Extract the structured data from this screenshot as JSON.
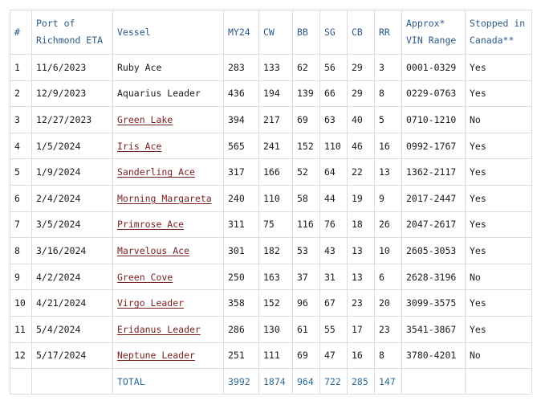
{
  "headers": {
    "num": "#",
    "eta": "Port of Richmond ETA",
    "vessel": "Vessel",
    "my24": "MY24",
    "cw": "CW",
    "bb": "BB",
    "sg": "SG",
    "cb": "CB",
    "rr": "RR",
    "vin": "Approx* VIN Range",
    "stopped": "Stopped in Canada**"
  },
  "rows": [
    {
      "num": "1",
      "eta": "11/6/2023",
      "vessel": "Ruby Ace",
      "link": false,
      "my24": "283",
      "cw": "133",
      "bb": "62",
      "sg": "56",
      "cb": "29",
      "rr": "3",
      "vin": "0001-0329",
      "stopped": "Yes"
    },
    {
      "num": "2",
      "eta": "12/9/2023",
      "vessel": "Aquarius Leader",
      "link": false,
      "my24": "436",
      "cw": "194",
      "bb": "139",
      "sg": "66",
      "cb": "29",
      "rr": "8",
      "vin": "0229-0763",
      "stopped": "Yes"
    },
    {
      "num": "3",
      "eta": "12/27/2023",
      "vessel": "Green Lake",
      "link": true,
      "my24": "394",
      "cw": "217",
      "bb": "69",
      "sg": "63",
      "cb": "40",
      "rr": "5",
      "vin": "0710-1210",
      "stopped": "No"
    },
    {
      "num": "4",
      "eta": "1/5/2024",
      "vessel": "Iris Ace",
      "link": true,
      "my24": "565",
      "cw": "241",
      "bb": "152",
      "sg": "110",
      "cb": "46",
      "rr": "16",
      "vin": "0992-1767",
      "stopped": "Yes"
    },
    {
      "num": "5",
      "eta": "1/9/2024",
      "vessel": "Sanderling Ace",
      "link": true,
      "my24": "317",
      "cw": "166",
      "bb": "52",
      "sg": "64",
      "cb": "22",
      "rr": "13",
      "vin": "1362-2117",
      "stopped": "Yes"
    },
    {
      "num": "6",
      "eta": "2/4/2024",
      "vessel": "Morning Margareta",
      "link": true,
      "my24": "240",
      "cw": "110",
      "bb": "58",
      "sg": "44",
      "cb": "19",
      "rr": "9",
      "vin": "2017-2447",
      "stopped": "Yes"
    },
    {
      "num": "7",
      "eta": "3/5/2024",
      "vessel": "Primrose Ace",
      "link": true,
      "my24": "311",
      "cw": "75",
      "bb": "116",
      "sg": "76",
      "cb": "18",
      "rr": "26",
      "vin": "2047-2617",
      "stopped": "Yes"
    },
    {
      "num": "8",
      "eta": "3/16/2024",
      "vessel": "Marvelous Ace",
      "link": true,
      "my24": "301",
      "cw": "182",
      "bb": "53",
      "sg": "43",
      "cb": "13",
      "rr": "10",
      "vin": "2605-3053",
      "stopped": "Yes"
    },
    {
      "num": "9",
      "eta": "4/2/2024",
      "vessel": "Green Cove",
      "link": true,
      "my24": "250",
      "cw": "163",
      "bb": "37",
      "sg": "31",
      "cb": "13",
      "rr": "6",
      "vin": "2628-3196",
      "stopped": "No"
    },
    {
      "num": "10",
      "eta": "4/21/2024",
      "vessel": "Virgo Leader",
      "link": true,
      "my24": "358",
      "cw": "152",
      "bb": "96",
      "sg": "67",
      "cb": "23",
      "rr": "20",
      "vin": "3099-3575",
      "stopped": "Yes"
    },
    {
      "num": "11",
      "eta": "5/4/2024",
      "vessel": "Eridanus Leader",
      "link": true,
      "my24": "286",
      "cw": "130",
      "bb": "61",
      "sg": "55",
      "cb": "17",
      "rr": "23",
      "vin": "3541-3867",
      "stopped": "Yes"
    },
    {
      "num": "12",
      "eta": "5/17/2024",
      "vessel": "Neptune Leader",
      "link": true,
      "my24": "251",
      "cw": "111",
      "bb": "69",
      "sg": "47",
      "cb": "16",
      "rr": "8",
      "vin": "3780-4201",
      "stopped": "No"
    }
  ],
  "total": {
    "label": "TOTAL",
    "my24": "3992",
    "cw": "1874",
    "bb": "964",
    "sg": "722",
    "cb": "285",
    "rr": "147"
  },
  "colors": {
    "header_text": "#2a5a8a",
    "link_text": "#7a1e1e",
    "total_text": "#2a6a9a",
    "border": "#d9dde3"
  }
}
